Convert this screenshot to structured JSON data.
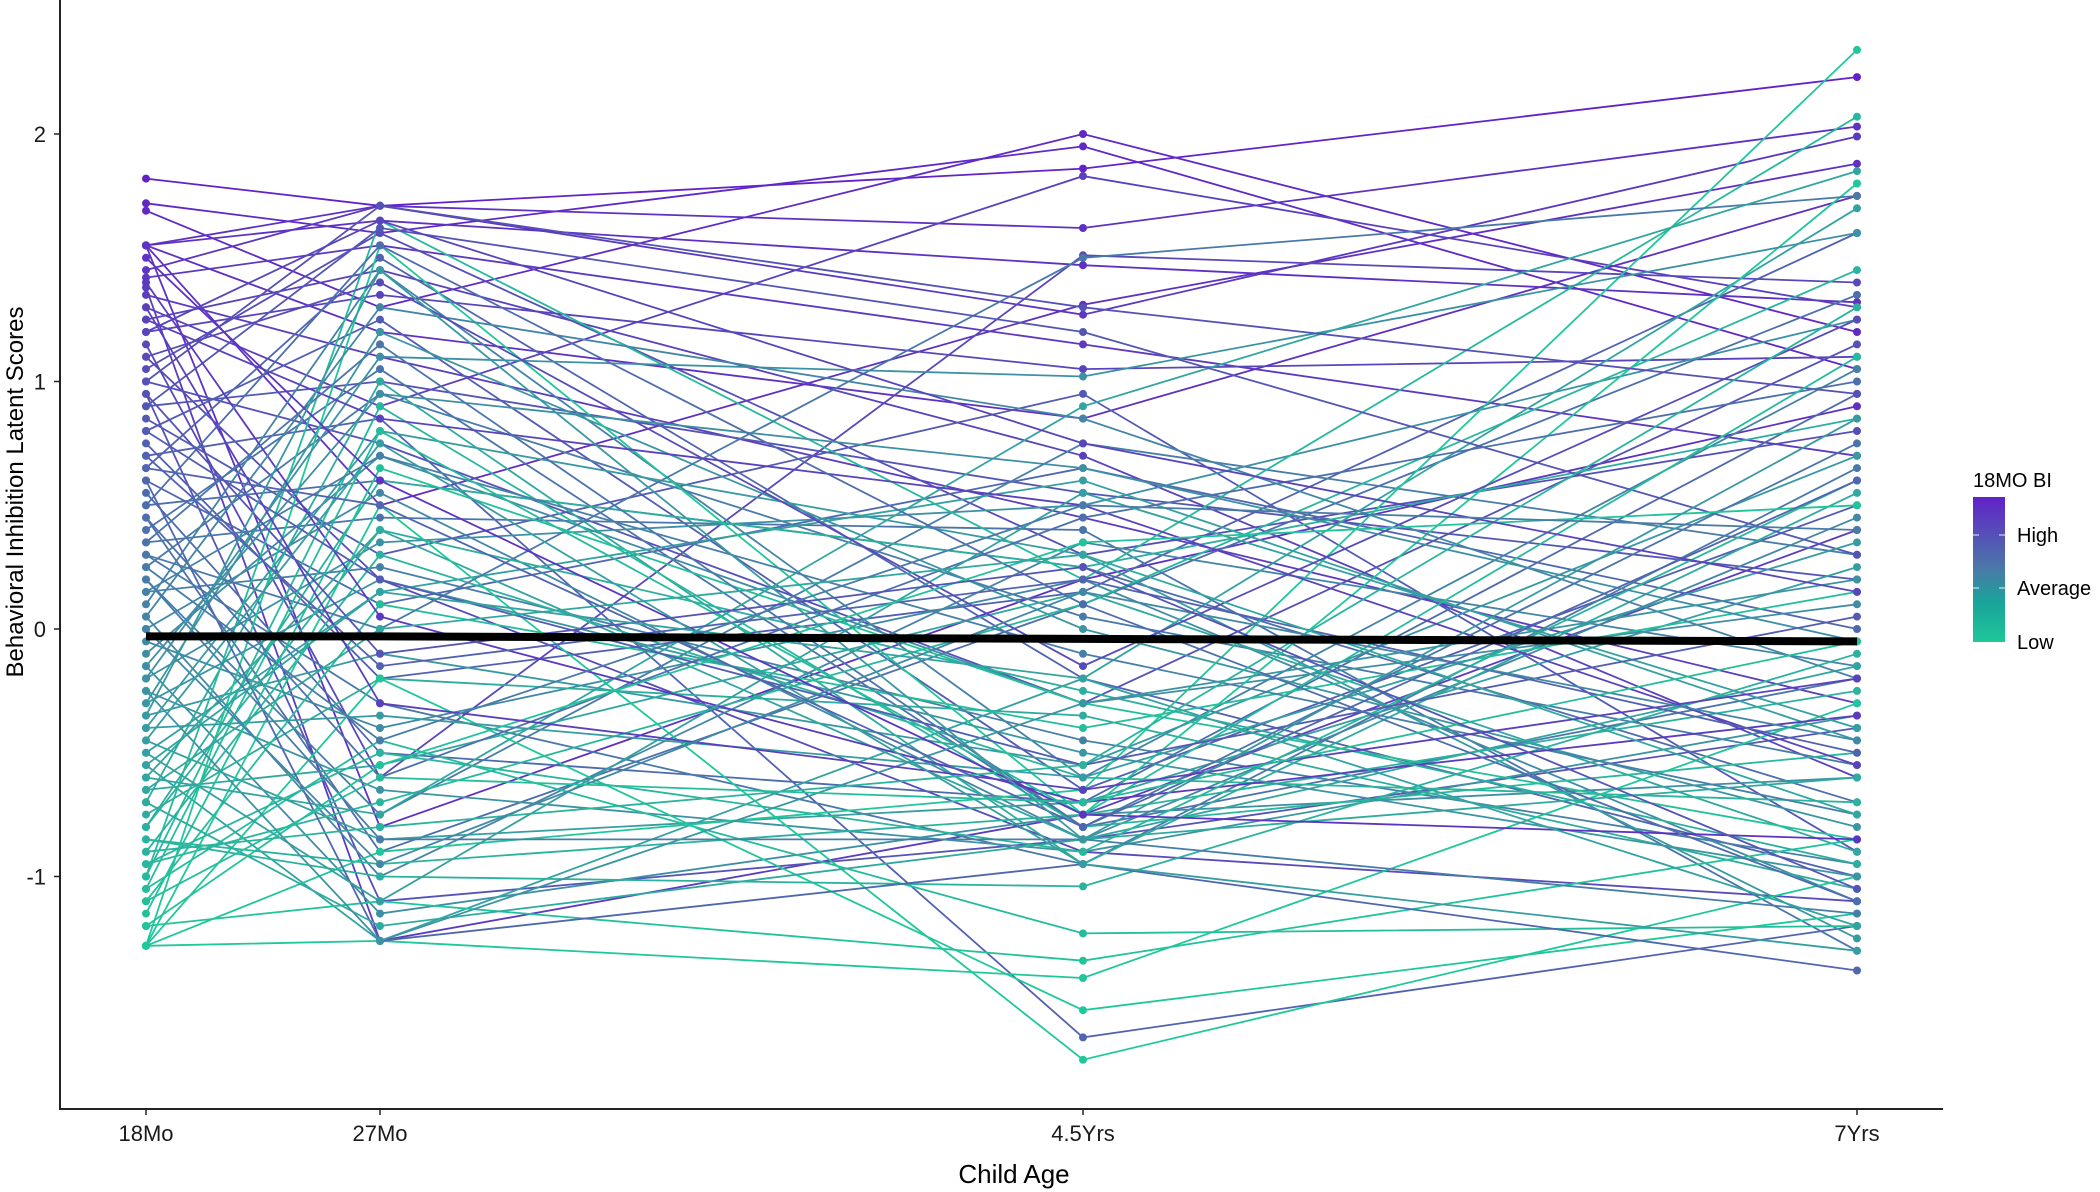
{
  "chart_data": {
    "type": "line",
    "title": "",
    "xlabel": "Child Age",
    "ylabel": "Behavioral Inhibition Latent Scores",
    "categories": [
      "18Mo",
      "27Mo",
      "4.5Yrs",
      "7Yrs"
    ],
    "yticks": [
      "2",
      "1",
      "0",
      "-1"
    ],
    "ytick_values": [
      2,
      1,
      0,
      -1
    ],
    "ylim": [
      -1.94,
      2.54
    ],
    "grid": false,
    "legend": {
      "title": "18MO BI",
      "placement": "right",
      "labels": [
        "High",
        "Average",
        "Low"
      ],
      "color_high": "#6222c8",
      "color_mid": "#4a7aa8",
      "color_low": "#1fc79a"
    },
    "mean_line": {
      "name": "Mean",
      "color": "#000000",
      "values": [
        -0.03,
        -0.03,
        -0.04,
        -0.05
      ]
    },
    "series": [
      {
        "bi": 1.82,
        "values": [
          1.82,
          1.71,
          1.86,
          2.23
        ]
      },
      {
        "bi": 1.72,
        "values": [
          1.72,
          1.6,
          1.95,
          1.05
        ]
      },
      {
        "bi": 1.69,
        "values": [
          1.69,
          1.3,
          2.0,
          1.2
        ]
      },
      {
        "bi": 1.55,
        "values": [
          1.55,
          1.71,
          1.62,
          2.03
        ]
      },
      {
        "bi": 1.55,
        "values": [
          1.55,
          1.65,
          1.47,
          1.32
        ]
      },
      {
        "bi": 1.55,
        "values": [
          1.55,
          0.5,
          1.31,
          1.88
        ]
      },
      {
        "bi": 1.55,
        "values": [
          1.55,
          -0.8,
          0.2,
          0.9
        ]
      },
      {
        "bi": 1.55,
        "values": [
          1.55,
          1.2,
          0.85,
          1.75
        ]
      },
      {
        "bi": 1.45,
        "values": [
          1.45,
          1.71,
          1.27,
          1.99
        ]
      },
      {
        "bi": 1.42,
        "values": [
          1.42,
          1.55,
          1.15,
          0.7
        ]
      },
      {
        "bi": 1.38,
        "values": [
          1.38,
          -1.26,
          -0.75,
          0.4
        ]
      },
      {
        "bi": 1.35,
        "values": [
          1.35,
          1.1,
          0.45,
          -0.3
        ]
      },
      {
        "bi": 1.3,
        "values": [
          1.3,
          0.9,
          1.83,
          1.3
        ]
      },
      {
        "bi": 1.25,
        "values": [
          1.25,
          1.45,
          0.7,
          -0.6
        ]
      },
      {
        "bi": 1.2,
        "values": [
          1.2,
          1.35,
          1.05,
          1.1
        ]
      },
      {
        "bi": 1.15,
        "values": [
          1.15,
          -0.6,
          1.51,
          1.4
        ]
      },
      {
        "bi": 1.1,
        "values": [
          1.1,
          0.2,
          -0.9,
          -1.1
        ]
      },
      {
        "bi": 1.05,
        "values": [
          1.05,
          1.6,
          0.3,
          0.8
        ]
      },
      {
        "bi": 1.0,
        "values": [
          1.0,
          0.75,
          -0.3,
          1.15
        ]
      },
      {
        "bi": 0.95,
        "values": [
          0.95,
          -1.1,
          -0.85,
          -0.4
        ]
      },
      {
        "bi": 0.9,
        "values": [
          0.9,
          1.0,
          0.55,
          0.2
        ]
      },
      {
        "bi": 0.85,
        "values": [
          0.85,
          0.3,
          0.95,
          -0.9
        ]
      },
      {
        "bi": 0.8,
        "values": [
          0.8,
          1.25,
          -0.65,
          0.5
        ]
      },
      {
        "bi": 0.75,
        "values": [
          0.75,
          -0.2,
          0.15,
          1.6
        ]
      },
      {
        "bi": 0.7,
        "values": [
          0.7,
          0.85,
          -1.65,
          -1.2
        ]
      },
      {
        "bi": 0.65,
        "values": [
          0.65,
          1.5,
          -0.2,
          -1.0
        ]
      },
      {
        "bi": 0.6,
        "values": [
          0.6,
          0.1,
          0.65,
          0.0
        ]
      },
      {
        "bi": 0.55,
        "values": [
          0.55,
          -0.5,
          -0.7,
          0.95
        ]
      },
      {
        "bi": 0.5,
        "values": [
          0.5,
          0.6,
          0.25,
          -0.7
        ]
      },
      {
        "bi": 0.45,
        "values": [
          0.45,
          -0.9,
          0.1,
          1.35
        ]
      },
      {
        "bi": 0.4,
        "values": [
          0.4,
          1.05,
          -0.8,
          -0.2
        ]
      },
      {
        "bi": 0.35,
        "values": [
          0.35,
          0.45,
          0.4,
          -1.3
        ]
      },
      {
        "bi": 0.3,
        "values": [
          0.3,
          -0.3,
          -0.95,
          0.65
        ]
      },
      {
        "bi": 0.25,
        "values": [
          0.25,
          0.95,
          0.05,
          -0.55
        ]
      },
      {
        "bi": 0.2,
        "values": [
          0.2,
          -0.75,
          0.75,
          0.3
        ]
      },
      {
        "bi": 0.15,
        "values": [
          0.15,
          0.25,
          -0.45,
          -0.95
        ]
      },
      {
        "bi": 0.1,
        "values": [
          0.1,
          1.45,
          -0.6,
          1.05
        ]
      },
      {
        "bi": 0.05,
        "values": [
          0.05,
          -1.0,
          0.35,
          -0.15
        ]
      },
      {
        "bi": 0.0,
        "values": [
          0.0,
          0.55,
          -0.85,
          0.45
        ]
      },
      {
        "bi": -0.05,
        "values": [
          -0.05,
          -0.4,
          0.2,
          -1.1
        ]
      },
      {
        "bi": -0.1,
        "values": [
          -0.1,
          0.7,
          -0.3,
          0.1
        ]
      },
      {
        "bi": -0.15,
        "values": [
          -0.15,
          -1.15,
          -0.75,
          -0.6
        ]
      },
      {
        "bi": -0.2,
        "values": [
          -0.2,
          0.35,
          0.5,
          1.25
        ]
      },
      {
        "bi": -0.25,
        "values": [
          -0.25,
          -0.65,
          -0.9,
          -0.35
        ]
      },
      {
        "bi": -0.3,
        "values": [
          -0.3,
          1.2,
          0.0,
          -0.8
        ]
      },
      {
        "bi": -0.35,
        "values": [
          -0.35,
          -0.1,
          -0.55,
          0.7
        ]
      },
      {
        "bi": -0.4,
        "values": [
          -0.4,
          0.8,
          0.3,
          -1.25
        ]
      },
      {
        "bi": -0.45,
        "values": [
          -0.45,
          -0.85,
          -0.7,
          0.25
        ]
      },
      {
        "bi": -0.5,
        "values": [
          -0.5,
          0.15,
          0.6,
          -0.45
        ]
      },
      {
        "bi": -0.55,
        "values": [
          -0.55,
          -1.26,
          -0.2,
          1.7
        ]
      },
      {
        "bi": -0.6,
        "values": [
          -0.6,
          0.4,
          -0.85,
          -0.15
        ]
      },
      {
        "bi": -0.65,
        "values": [
          -0.65,
          -0.55,
          0.15,
          -0.9
        ]
      },
      {
        "bi": -0.7,
        "values": [
          -0.7,
          1.0,
          -0.95,
          0.55
        ]
      },
      {
        "bi": -0.75,
        "values": [
          -0.75,
          -0.2,
          -0.35,
          -1.05
        ]
      },
      {
        "bi": -0.8,
        "values": [
          -0.8,
          0.6,
          0.25,
          0.85
        ]
      },
      {
        "bi": -0.85,
        "values": [
          -0.85,
          -0.95,
          -0.75,
          -0.25
        ]
      },
      {
        "bi": -0.9,
        "values": [
          -0.9,
          0.3,
          -0.6,
          -0.7
        ]
      },
      {
        "bi": -0.95,
        "values": [
          -0.95,
          -0.7,
          0.1,
          1.45
        ]
      },
      {
        "bi": -1.0,
        "values": [
          -1.0,
          0.9,
          -0.8,
          -0.5
        ]
      },
      {
        "bi": -1.05,
        "values": [
          -1.05,
          -0.45,
          -1.23,
          -1.2
        ]
      },
      {
        "bi": -1.1,
        "values": [
          -1.1,
          0.1,
          -0.4,
          0.15
        ]
      },
      {
        "bi": -1.2,
        "values": [
          -1.2,
          -1.1,
          -1.34,
          -0.85
        ]
      },
      {
        "bi": -1.28,
        "values": [
          -1.28,
          -0.9,
          -0.65,
          2.34
        ]
      },
      {
        "bi": -1.28,
        "values": [
          -1.28,
          0.5,
          -1.74,
          -1.0
        ]
      },
      {
        "bi": -1.28,
        "values": [
          -1.28,
          -1.26,
          -1.41,
          -0.3
        ]
      },
      {
        "bi": -1.28,
        "values": [
          -1.28,
          -0.2,
          -1.54,
          -1.15
        ]
      },
      {
        "bi": -1.28,
        "values": [
          -1.28,
          1.55,
          -0.75,
          1.8
        ]
      },
      {
        "bi": -1.0,
        "values": [
          -1.0,
          1.65,
          0.2,
          2.07
        ]
      },
      {
        "bi": -0.2,
        "values": [
          -0.2,
          1.1,
          1.02,
          1.6
        ]
      },
      {
        "bi": 0.3,
        "values": [
          0.3,
          0.0,
          1.5,
          1.75
        ]
      },
      {
        "bi": -0.6,
        "values": [
          -0.6,
          -0.75,
          0.9,
          1.85
        ]
      },
      {
        "bi": 0.9,
        "values": [
          0.9,
          1.62,
          1.2,
          0.3
        ]
      },
      {
        "bi": 1.25,
        "values": [
          1.25,
          0.85,
          0.5,
          -0.55
        ]
      },
      {
        "bi": -0.85,
        "values": [
          -0.85,
          -1.0,
          -1.04,
          -0.1
        ]
      },
      {
        "bi": 0.6,
        "values": [
          0.6,
          -1.26,
          -0.95,
          -1.38
        ]
      },
      {
        "bi": 1.0,
        "values": [
          1.0,
          1.71,
          1.3,
          0.95
        ]
      },
      {
        "bi": -0.4,
        "values": [
          -0.4,
          -0.35,
          -0.6,
          0.35
        ]
      },
      {
        "bi": 0.15,
        "values": [
          0.15,
          0.7,
          -0.1,
          -0.75
        ]
      },
      {
        "bi": -1.15,
        "values": [
          -1.15,
          0.65,
          -0.3,
          -0.85
        ]
      },
      {
        "bi": 0.45,
        "values": [
          0.45,
          -0.6,
          0.45,
          1.0
        ]
      },
      {
        "bi": -0.7,
        "values": [
          -0.7,
          -1.2,
          -0.85,
          -0.6
        ]
      },
      {
        "bi": 1.4,
        "values": [
          1.4,
          0.05,
          -0.7,
          -0.35
        ]
      },
      {
        "bi": -0.3,
        "values": [
          -0.3,
          0.2,
          -0.5,
          -1.0
        ]
      },
      {
        "bi": 0.7,
        "values": [
          0.7,
          -0.15,
          0.2,
          -0.5
        ]
      },
      {
        "bi": -0.95,
        "values": [
          -0.95,
          -0.5,
          -0.9,
          0.6
        ]
      },
      {
        "bi": 0.05,
        "values": [
          0.05,
          1.3,
          0.85,
          -0.2
        ]
      },
      {
        "bi": -0.5,
        "values": [
          -0.5,
          -1.1,
          0.55,
          -0.4
        ]
      },
      {
        "bi": 1.1,
        "values": [
          1.1,
          1.4,
          -0.15,
          1.25
        ]
      },
      {
        "bi": -1.05,
        "values": [
          -1.05,
          0.8,
          -0.75,
          1.1
        ]
      },
      {
        "bi": 0.2,
        "values": [
          0.2,
          -0.85,
          -0.85,
          -1.15
        ]
      },
      {
        "bi": -0.15,
        "values": [
          -0.15,
          0.95,
          0.65,
          -0.05
        ]
      },
      {
        "bi": 0.8,
        "values": [
          0.8,
          0.2,
          -0.55,
          0.05
        ]
      },
      {
        "bi": -0.8,
        "values": [
          -0.8,
          0.4,
          -0.25,
          -0.95
        ]
      },
      {
        "bi": 0.35,
        "values": [
          0.35,
          1.15,
          -0.8,
          0.75
        ]
      },
      {
        "bi": -1.2,
        "values": [
          -1.2,
          -0.55,
          0.35,
          0.5
        ]
      },
      {
        "bi": 1.5,
        "values": [
          1.5,
          0.6,
          -0.75,
          -0.85
        ]
      },
      {
        "bi": -0.25,
        "values": [
          -0.25,
          -1.26,
          -0.3,
          0.2
        ]
      },
      {
        "bi": 0.5,
        "values": [
          0.5,
          1.55,
          0.1,
          -1.1
        ]
      },
      {
        "bi": -0.65,
        "values": [
          -0.65,
          0.0,
          0.3,
          -0.75
        ]
      },
      {
        "bi": 1.3,
        "values": [
          1.3,
          -0.3,
          -0.65,
          -0.2
        ]
      },
      {
        "bi": -0.9,
        "values": [
          -0.9,
          -0.8,
          -0.55,
          1.3
        ]
      },
      {
        "bi": 0.0,
        "values": [
          0.0,
          -0.95,
          0.15,
          -0.45
        ]
      },
      {
        "bi": -0.45,
        "values": [
          -0.45,
          0.75,
          -0.95,
          -1.3
        ]
      },
      {
        "bi": 0.65,
        "values": [
          0.65,
          0.5,
          -0.8,
          0.6
        ]
      },
      {
        "bi": -1.1,
        "values": [
          -1.1,
          -0.6,
          -0.7,
          -0.05
        ]
      },
      {
        "bi": 0.95,
        "values": [
          0.95,
          -0.1,
          0.25,
          -1.05
        ]
      },
      {
        "bi": -0.35,
        "values": [
          -0.35,
          1.45,
          -0.85,
          0.85
        ]
      },
      {
        "bi": 1.2,
        "values": [
          1.2,
          1.65,
          0.75,
          0.15
        ]
      },
      {
        "bi": -0.55,
        "values": [
          -0.55,
          0.15,
          -0.2,
          -1.2
        ]
      },
      {
        "bi": 0.25,
        "values": [
          0.25,
          -0.45,
          0.5,
          0.4
        ]
      }
    ]
  }
}
